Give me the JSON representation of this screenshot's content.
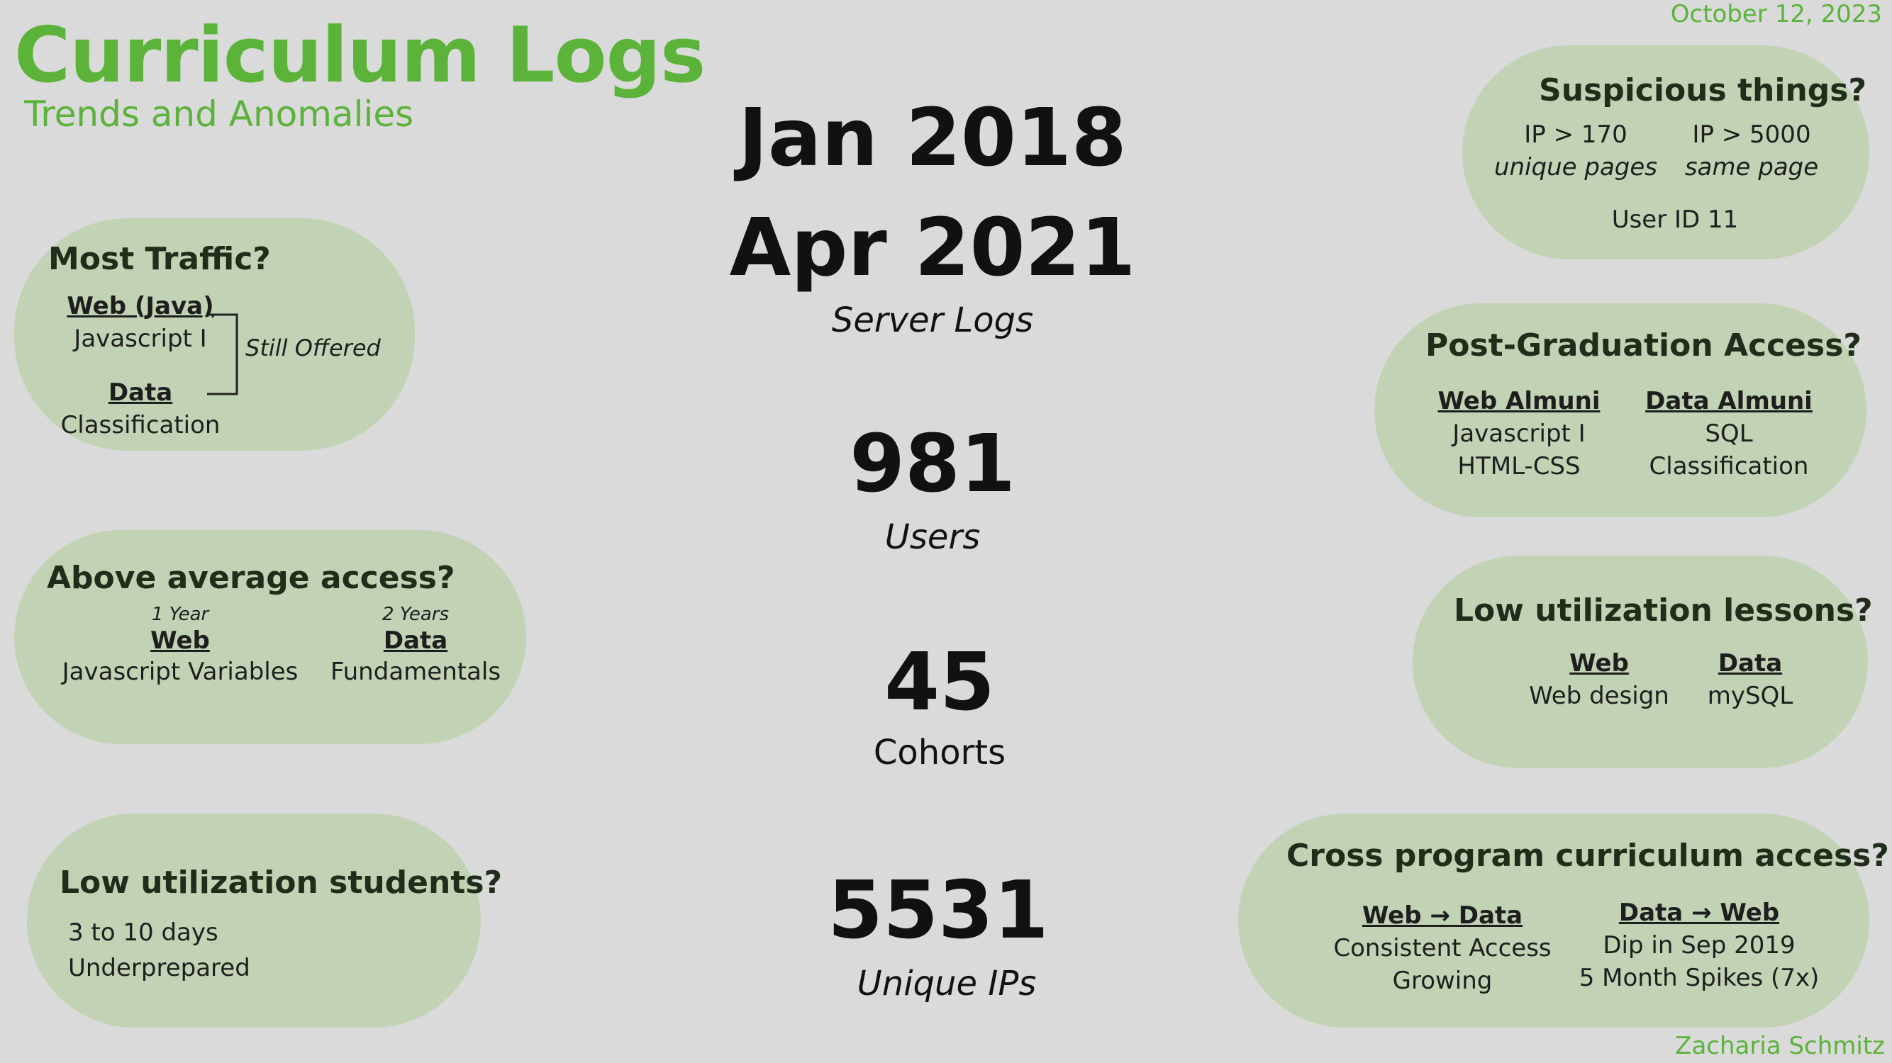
{
  "header": {
    "title": "Curriculum Logs",
    "subtitle": "Trends and Anomalies",
    "date": "October 12, 2023",
    "author": "Zacharia Schmitz",
    "accent_color": "#5bb33a"
  },
  "center": {
    "start": "Jan 2018",
    "end": "Apr 2021",
    "period_caption": "Server Logs",
    "users_value": "981",
    "users_caption": "Users",
    "cohorts_value": "45",
    "cohorts_caption": "Cohorts",
    "ips_value": "5531",
    "ips_caption": "Unique IPs"
  },
  "most_traffic": {
    "heading": "Most Traffic?",
    "web_label": "Web (Java)",
    "web_item": "Javascript I",
    "data_label": "Data",
    "data_item": "Classification",
    "note": "Still Offered"
  },
  "above_average": {
    "heading": "Above average access?",
    "web_period": "1 Year",
    "web_label": "Web",
    "web_item": "Javascript Variables",
    "data_period": "2 Years",
    "data_label": "Data",
    "data_item": "Fundamentals"
  },
  "low_students": {
    "heading": "Low utilization students?",
    "line1": "3 to 10 days",
    "line2": "Underprepared"
  },
  "suspicious": {
    "heading": "Suspicious things?",
    "col1_line1": "IP > 170",
    "col1_line2": "unique pages",
    "col2_line1": "IP > 5000",
    "col2_line2": "same page",
    "footer": "User ID 11"
  },
  "post_grad": {
    "heading": "Post-Graduation Access?",
    "web_label": "Web Almuni",
    "web_item1": "Javascript I",
    "web_item2": "HTML-CSS",
    "data_label": "Data Almuni",
    "data_item1": "SQL",
    "data_item2": "Classification"
  },
  "low_lessons": {
    "heading": "Low utilization lessons?",
    "web_label": "Web",
    "web_item": "Web design",
    "data_label": "Data",
    "data_item": "mySQL"
  },
  "cross_program": {
    "heading": "Cross program curriculum access?",
    "col1_label": "Web → Data",
    "col1_item1": "Consistent Access",
    "col1_item2": "Growing",
    "col2_label": "Data → Web",
    "col2_item1": "Dip in Sep 2019",
    "col2_item2": "5 Month Spikes (7x)"
  }
}
